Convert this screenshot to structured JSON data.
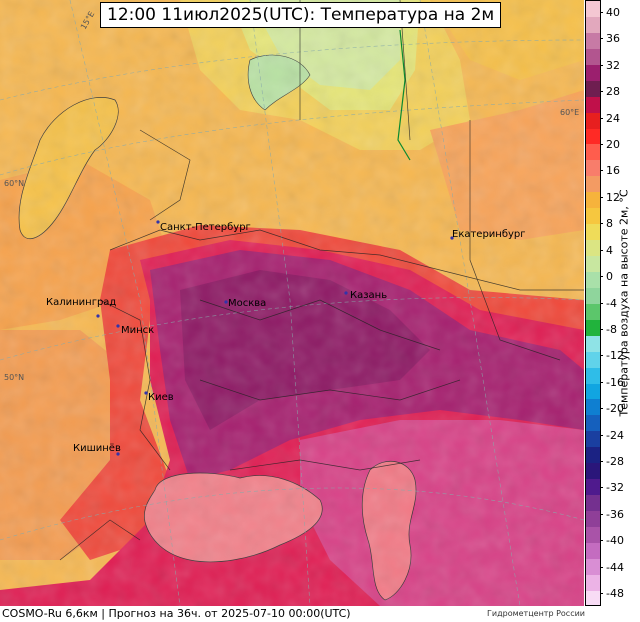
{
  "title": "12:00 11июл2025(UTC): Температура на 2м",
  "footer": {
    "model_info": "COSMO-Ru 6,6км | Прогноз на  36ч. от 2025-07-10 00:00(UTC)",
    "credit": "Гидрометцентр России"
  },
  "colorbar": {
    "label": "Температура воздуха на высоте 2м, °C",
    "ticks": [
      "40",
      "36",
      "32",
      "28",
      "24",
      "20",
      "16",
      "12",
      "8",
      "4",
      "0",
      "-4",
      "-8",
      "-12",
      "-16",
      "-20",
      "-24",
      "-28",
      "-32",
      "-36",
      "-40",
      "-44",
      "-48"
    ],
    "colors": [
      "#f4c7d2",
      "#e2a8bd",
      "#c77aa5",
      "#b2558f",
      "#9b1f6e",
      "#6e1e50",
      "#c0104a",
      "#e71f1f",
      "#ff2a25",
      "#ff5d4d",
      "#f87d6b",
      "#f39b63",
      "#f6b33c",
      "#f6c73f",
      "#efdc59",
      "#dbe583",
      "#c8e7a0",
      "#a9e0a9",
      "#8fd59c",
      "#5cc66b",
      "#21b33c",
      "#8fe3e6",
      "#60d3ea",
      "#2fbde8",
      "#11a5e1",
      "#0f7fd1",
      "#1560bd",
      "#1a3fa0",
      "#1b2283",
      "#2a167a",
      "#4f1a8d",
      "#74308f",
      "#8f3f98",
      "#a953a8",
      "#c46cc0",
      "#d98ed4",
      "#ecb3e6",
      "#f8dcf5"
    ]
  },
  "map": {
    "graticule_labels": [
      "15°E",
      "60°N",
      "50°N",
      "60°E"
    ],
    "cities": [
      {
        "name": "Санкт-Петербург"
      },
      {
        "name": "Екатеринбург"
      },
      {
        "name": "Калининград"
      },
      {
        "name": "Москва"
      },
      {
        "name": "Казань"
      },
      {
        "name": "Минск"
      },
      {
        "name": "Киев"
      },
      {
        "name": "Кишинёв"
      }
    ]
  }
}
